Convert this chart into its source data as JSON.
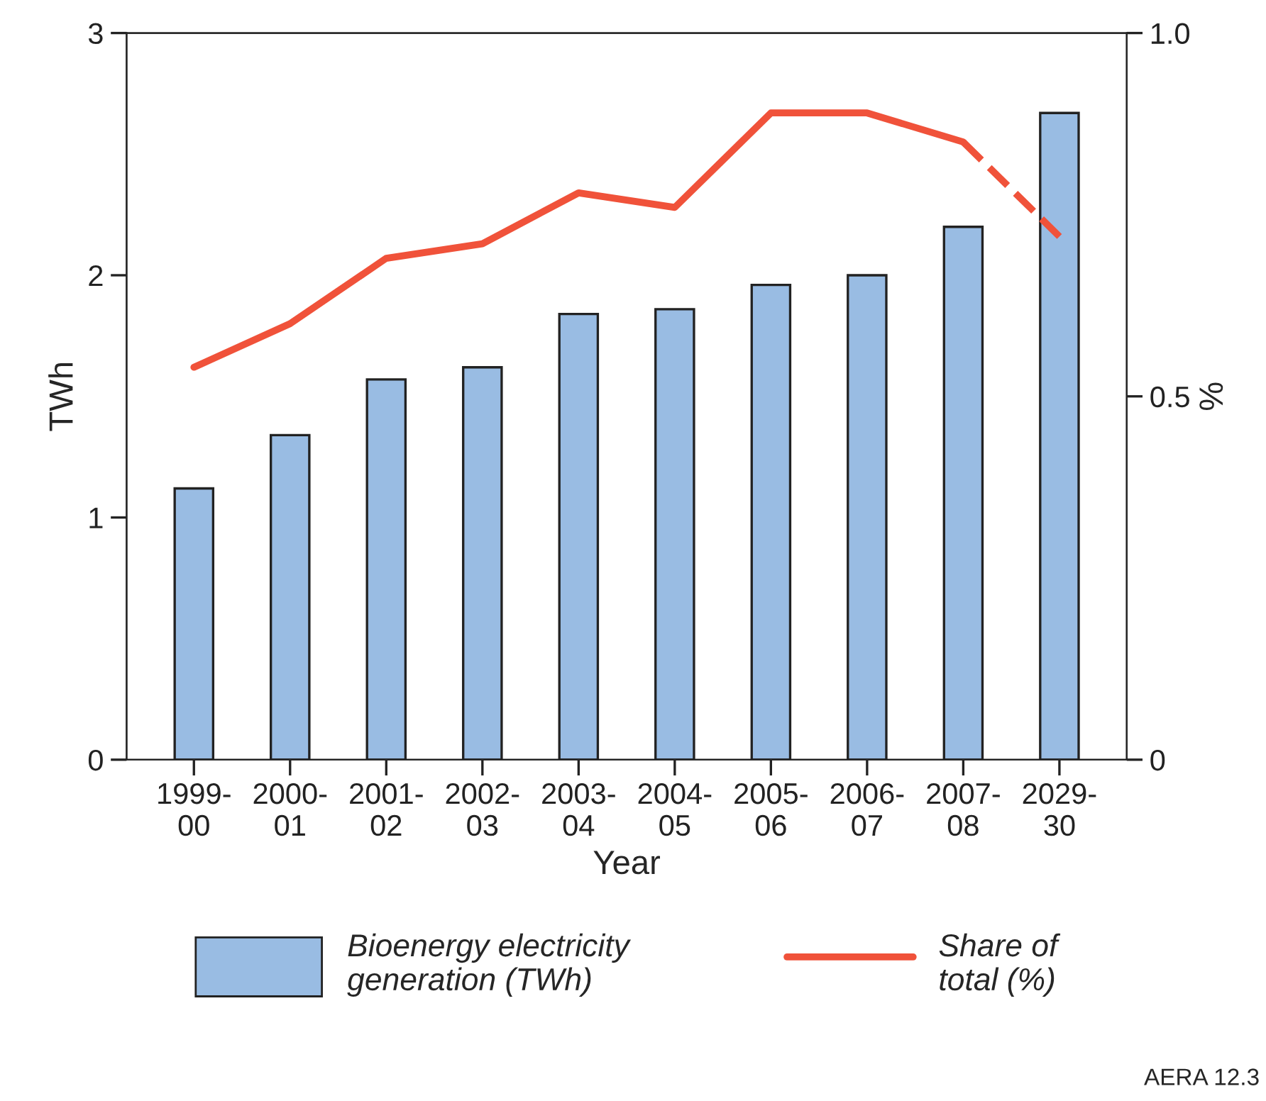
{
  "chart_data": {
    "type": "bar",
    "categories": [
      "1999-\n00",
      "2000-\n01",
      "2001-\n02",
      "2002-\n03",
      "2003-\n04",
      "2004-\n05",
      "2005-\n06",
      "2006-\n07",
      "2007-\n08",
      "2029-\n30"
    ],
    "xlabel": "Year",
    "ylabel": "TWh",
    "y2label": "%",
    "ylim": [
      0,
      3
    ],
    "yticks": [
      0,
      1,
      2,
      3
    ],
    "y2lim": [
      0,
      1.0
    ],
    "y2ticks": [
      0,
      0.5,
      {
        "value": 1.0,
        "label": "1.0"
      }
    ],
    "series": [
      {
        "name": "Bioenergy electricity\ngeneration (TWh)",
        "color": "#99bce3",
        "values": [
          1.12,
          1.34,
          1.57,
          1.62,
          1.84,
          1.86,
          1.96,
          2.0,
          2.2,
          2.67
        ]
      },
      {
        "name": "Share of\ntotal (%)",
        "type": "line",
        "axis": "y2",
        "color": "#f0523a",
        "line_style": "solid",
        "values": [
          0.54,
          0.6,
          0.69,
          0.71,
          0.78,
          0.76,
          0.89,
          0.89,
          0.85,
          null
        ]
      },
      {
        "type": "line",
        "axis": "y2",
        "color": "#f0523a",
        "line_style": "dashed",
        "values": [
          null,
          null,
          null,
          null,
          null,
          null,
          null,
          null,
          0.85,
          0.72
        ]
      }
    ],
    "grid": false,
    "legend": "bottom",
    "annotations": [
      "AERA 12.3"
    ]
  }
}
